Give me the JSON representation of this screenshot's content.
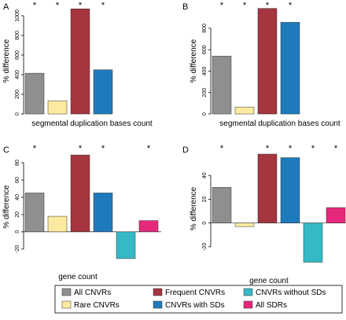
{
  "colors": {
    "all_cnvrs": "#8e8f8f",
    "rare_cnvrs": "#fbeaa0",
    "frequent_cnvrs": "#a5353f",
    "cnvrs_with_sds": "#1d7bbd",
    "cnvrs_without_sds": "#35b9c4",
    "all_sdrs": "#e6287a"
  },
  "legend": {
    "position": "bottom",
    "items": [
      {
        "label": "All CNVRs",
        "color_key": "all_cnvrs"
      },
      {
        "label": "Frequent CNVRs",
        "color_key": "frequent_cnvrs"
      },
      {
        "label": "CNVRs without SDs",
        "color_key": "cnvrs_without_sds"
      },
      {
        "label": "Rare CNVRs",
        "color_key": "rare_cnvrs"
      },
      {
        "label": "CNVRs with SDs",
        "color_key": "cnvrs_with_sds"
      },
      {
        "label": "All SDRs",
        "color_key": "all_sdrs"
      }
    ]
  },
  "chart_data": [
    {
      "panel": "A",
      "type": "bar",
      "categories": [
        "All CNVRs",
        "Rare CNVRs",
        "Frequent CNVRs",
        "CNVRs with SDs"
      ],
      "color_keys": [
        "all_cnvrs",
        "rare_cnvrs",
        "frequent_cnvrs",
        "cnvrs_with_sds"
      ],
      "values": [
        415,
        135,
        1070,
        450
      ],
      "significant": [
        "*",
        "*",
        "*",
        "*"
      ],
      "xlabel": "segmental duplication bases count",
      "ylabel": "% difference",
      "ylim": [
        0,
        1080
      ],
      "ticks": [
        0,
        200,
        400,
        600,
        800,
        1000
      ]
    },
    {
      "panel": "B",
      "type": "bar",
      "categories": [
        "All CNVRs",
        "Rare CNVRs",
        "Frequent CNVRs",
        "CNVRs with SDs"
      ],
      "color_keys": [
        "all_cnvrs",
        "rare_cnvrs",
        "frequent_cnvrs",
        "cnvrs_with_sds"
      ],
      "values": [
        540,
        65,
        985,
        855
      ],
      "significant": [
        "*",
        "*",
        "*",
        "*"
      ],
      "xlabel": "segmental duplication bases count",
      "ylabel": "% difference",
      "ylim": [
        0,
        990
      ],
      "ticks": [
        0,
        200,
        400,
        600,
        800
      ]
    },
    {
      "panel": "C",
      "type": "bar",
      "categories": [
        "All CNVRs",
        "Rare CNVRs",
        "Frequent CNVRs",
        "CNVRs with SDs",
        "CNVRs without SDs",
        "All SDRs"
      ],
      "color_keys": [
        "all_cnvrs",
        "rare_cnvrs",
        "frequent_cnvrs",
        "cnvrs_with_sds",
        "cnvrs_without_sds",
        "all_sdrs"
      ],
      "values": [
        45,
        18,
        89,
        45,
        -31,
        13
      ],
      "significant": [
        "*",
        "",
        "*",
        "*",
        "",
        "*"
      ],
      "xlabel": "gene count",
      "ylabel": "% difference",
      "ylim": [
        -32,
        90
      ],
      "ticks": [
        -20,
        0,
        20,
        40,
        60,
        80
      ]
    },
    {
      "panel": "D",
      "type": "bar",
      "categories": [
        "All CNVRs",
        "Rare CNVRs",
        "Frequent CNVRs",
        "CNVRs with SDs",
        "CNVRs without SDs",
        "All SDRs"
      ],
      "color_keys": [
        "all_cnvrs",
        "rare_cnvrs",
        "frequent_cnvrs",
        "cnvrs_with_sds",
        "cnvrs_without_sds",
        "all_sdrs"
      ],
      "values": [
        30,
        -3,
        58,
        55,
        -33,
        13
      ],
      "significant": [
        "*",
        "",
        "*",
        "*",
        "*",
        "*"
      ],
      "xlabel": "gene count",
      "ylabel": "% difference",
      "ylim": [
        -34,
        58
      ],
      "ticks": [
        -20,
        0,
        20,
        40
      ]
    }
  ]
}
